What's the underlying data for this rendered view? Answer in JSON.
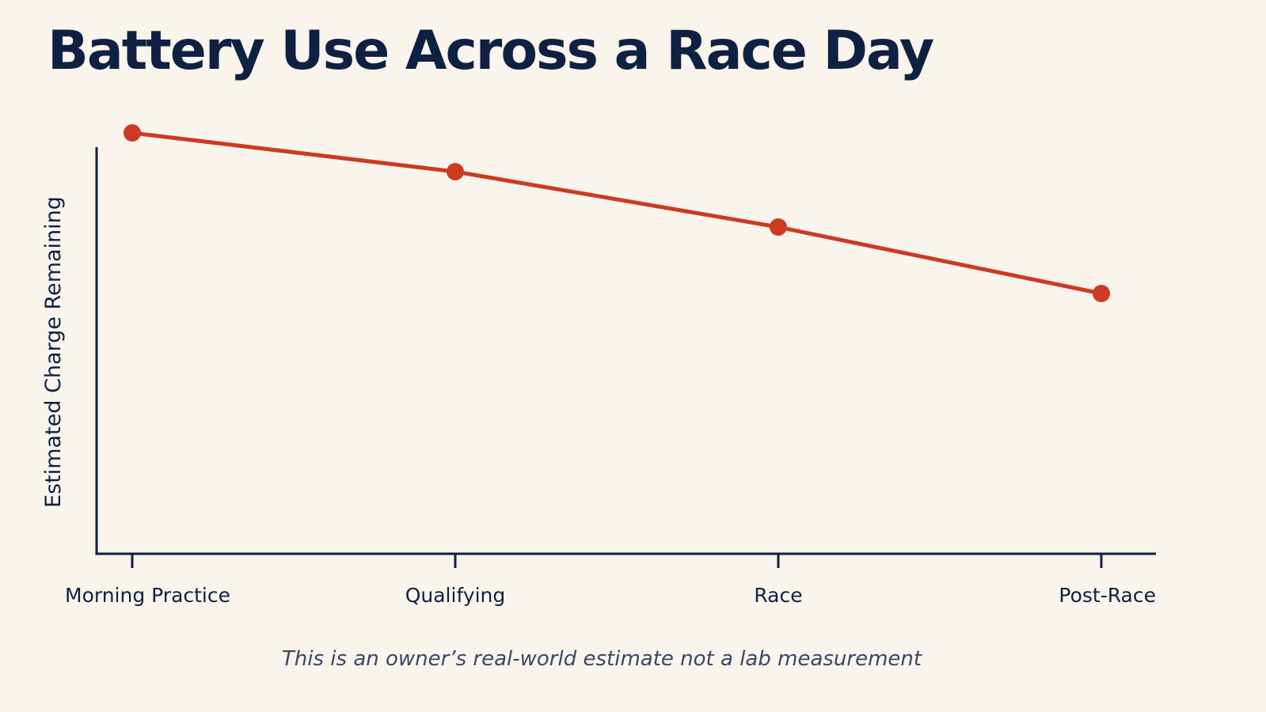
{
  "title": "Battery Use Across a Race Day",
  "note": "This is an owner’s real-world estimate not a lab measurement",
  "colors": {
    "background": "#f9f4ec",
    "text": "#0f2142",
    "line": "#cc3b22",
    "axis": "#0f2142"
  },
  "chart_data": {
    "type": "line",
    "title": "Battery Use Across a Race Day",
    "xlabel": "",
    "ylabel": "Estimated Charge Remaining",
    "categories": [
      "Morning Practice",
      "Qualifying",
      "Race",
      "Post-Race"
    ],
    "series": [
      {
        "values": [
          76,
          69,
          59,
          47
        ]
      }
    ],
    "ylim": [
      0,
      100
    ],
    "grid": false,
    "legend": "none",
    "y_ticks_shown": false
  }
}
